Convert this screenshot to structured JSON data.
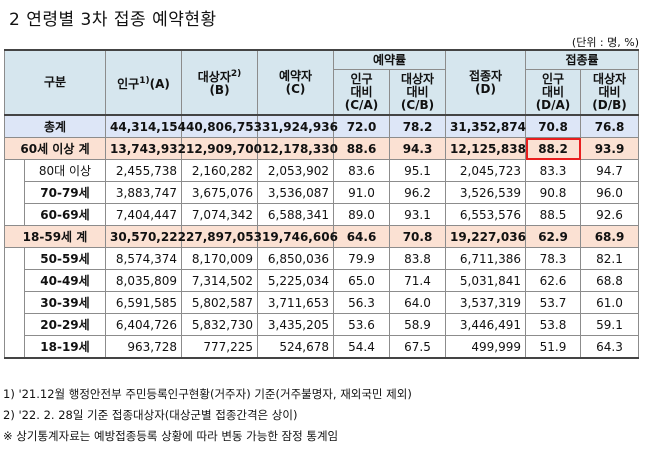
{
  "title": "2  연령별 3차 접종 예약현황",
  "unit": "(단위 : 명, %)",
  "headers": {
    "category": "구분",
    "population": "인구",
    "population_sup": "1)",
    "population_code": "(A)",
    "target": "대상자",
    "target_sup": "2)",
    "target_code": "(B)",
    "reserved": "예약자",
    "reserved_code": "(C)",
    "reservation_rate": "예약률",
    "rate_pop": "인구\n대비\n(C/A)",
    "rate_target": "대상자\n대비\n(C/B)",
    "vaccinated": "접종자",
    "vaccinated_code": "(D)",
    "vaccination_rate": "접종률",
    "vrate_pop": "인구\n대비\n(D/A)",
    "vrate_target": "대상자\n대비\n(D/B)"
  },
  "rows": [
    {
      "label": "총계",
      "pop": "44,314,154",
      "target": "40,806,753",
      "reserved": "31,924,936",
      "r_a": "72.0",
      "r_b": "78.2",
      "vacc": "31,352,874",
      "v_a": "70.8",
      "v_b": "76.8"
    },
    {
      "label": "60세 이상 계",
      "pop": "13,743,932",
      "target": "12,909,700",
      "reserved": "12,178,330",
      "r_a": "88.6",
      "r_b": "94.3",
      "vacc": "12,125,838",
      "v_a": "88.2",
      "v_b": "93.9"
    },
    {
      "label": "80대 이상",
      "pop": "2,455,738",
      "target": "2,160,282",
      "reserved": "2,053,902",
      "r_a": "83.6",
      "r_b": "95.1",
      "vacc": "2,045,723",
      "v_a": "83.3",
      "v_b": "94.7"
    },
    {
      "label": "70-79세",
      "pop": "3,883,747",
      "target": "3,675,076",
      "reserved": "3,536,087",
      "r_a": "91.0",
      "r_b": "96.2",
      "vacc": "3,526,539",
      "v_a": "90.8",
      "v_b": "96.0"
    },
    {
      "label": "60-69세",
      "pop": "7,404,447",
      "target": "7,074,342",
      "reserved": "6,588,341",
      "r_a": "89.0",
      "r_b": "93.1",
      "vacc": "6,553,576",
      "v_a": "88.5",
      "v_b": "92.6"
    },
    {
      "label": "18-59세 계",
      "pop": "30,570,222",
      "target": "27,897,053",
      "reserved": "19,746,606",
      "r_a": "64.6",
      "r_b": "70.8",
      "vacc": "19,227,036",
      "v_a": "62.9",
      "v_b": "68.9"
    },
    {
      "label": "50-59세",
      "pop": "8,574,374",
      "target": "8,170,009",
      "reserved": "6,850,036",
      "r_a": "79.9",
      "r_b": "83.8",
      "vacc": "6,711,386",
      "v_a": "78.3",
      "v_b": "82.1"
    },
    {
      "label": "40-49세",
      "pop": "8,035,809",
      "target": "7,314,502",
      "reserved": "5,225,034",
      "r_a": "65.0",
      "r_b": "71.4",
      "vacc": "5,031,841",
      "v_a": "62.6",
      "v_b": "68.8"
    },
    {
      "label": "30-39세",
      "pop": "6,591,585",
      "target": "5,802,587",
      "reserved": "3,711,653",
      "r_a": "56.3",
      "r_b": "64.0",
      "vacc": "3,537,319",
      "v_a": "53.7",
      "v_b": "61.0"
    },
    {
      "label": "20-29세",
      "pop": "6,404,726",
      "target": "5,832,730",
      "reserved": "3,435,205",
      "r_a": "53.6",
      "r_b": "58.9",
      "vacc": "3,446,491",
      "v_a": "53.8",
      "v_b": "59.1"
    },
    {
      "label": "18-19세",
      "pop": "963,728",
      "target": "777,225",
      "reserved": "524,678",
      "r_a": "54.4",
      "r_b": "67.5",
      "vacc": "499,999",
      "v_a": "51.9",
      "v_b": "64.3"
    }
  ],
  "notes": [
    "1) '21.12월 행정안전부 주민등록인구현황(거주자) 기준(거주불명자, 재외국민 제외)",
    "2) '22. 2. 28일 기준 접종대상자(대상군별 접종간격은 상이)",
    "※ 상기통계자료는 예방접종등록 상황에 따라 변동 가능한 잠정 통계임"
  ],
  "colors": {
    "header": "#d6e6ee",
    "total": "#dde6f7",
    "subtotal": "#fbe1d3",
    "highlight": "#e81e1e"
  }
}
